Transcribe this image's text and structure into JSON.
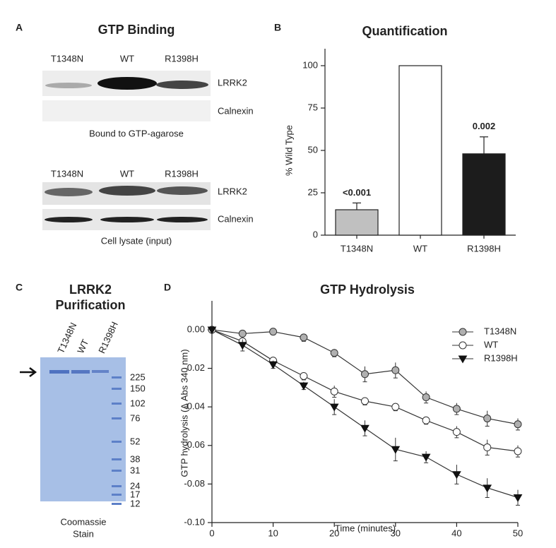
{
  "panel_a": {
    "label": "A",
    "title": "GTP Binding",
    "blots": [
      {
        "lanes": [
          "T1348N",
          "WT",
          "R1398H"
        ],
        "rows": [
          "LRRK2",
          "Calnexin"
        ],
        "caption": "Bound to GTP-agarose"
      },
      {
        "lanes": [
          "T1348N",
          "WT",
          "R1398H"
        ],
        "rows": [
          "LRRK2",
          "Calnexin"
        ],
        "caption": "Cell lysate (input)"
      }
    ]
  },
  "panel_c": {
    "label": "C",
    "title": [
      "LRRK2",
      "Purification"
    ],
    "lanes": [
      "T1348N",
      "WT",
      "R1398H"
    ],
    "ladder": [
      "225",
      "150",
      "102",
      "76",
      "52",
      "38",
      "31",
      "24",
      "17",
      "12"
    ],
    "caption": [
      "Coomassie",
      "Stain"
    ]
  },
  "chart_data": [
    {
      "type": "bar",
      "panel_label": "B",
      "title": "Quantification",
      "y_label": "% Wild Type",
      "categories": [
        "T1348N",
        "WT",
        "R1398H"
      ],
      "values": [
        15,
        100,
        48
      ],
      "errors": [
        4,
        null,
        10
      ],
      "bar_labels": [
        "<0.001",
        null,
        "0.002"
      ],
      "colors": [
        "#c0c0c0",
        "#ffffff",
        "#1c1c1c"
      ],
      "ylim": [
        0,
        110
      ],
      "yticks": [
        0,
        25,
        50,
        75,
        100
      ]
    },
    {
      "type": "line",
      "panel_label": "D",
      "title": "GTP Hydrolysis",
      "x_label": "Time (minutes)",
      "y_label": "GTP hydrolysis (Δ Abs 340 nm)",
      "legend": "top-right",
      "x": [
        0,
        5,
        10,
        15,
        20,
        25,
        30,
        35,
        40,
        45,
        50
      ],
      "series": [
        {
          "name": "T1348N",
          "color": "#b0b0b0",
          "marker": "circle",
          "values": [
            0,
            -0.002,
            -0.001,
            -0.004,
            -0.012,
            -0.023,
            -0.021,
            -0.035,
            -0.041,
            -0.046,
            -0.049
          ],
          "errors": [
            0,
            0.001,
            0.001,
            0.002,
            0.002,
            0.004,
            0.004,
            0.003,
            0.003,
            0.004,
            0.003
          ]
        },
        {
          "name": "WT",
          "color": "#ffffff",
          "marker": "circle",
          "values": [
            0,
            -0.006,
            -0.016,
            -0.024,
            -0.032,
            -0.037,
            -0.04,
            -0.047,
            -0.053,
            -0.061,
            -0.063
          ],
          "errors": [
            0,
            0.001,
            0.002,
            0.002,
            0.003,
            0.002,
            0.002,
            0.002,
            0.003,
            0.004,
            0.003
          ]
        },
        {
          "name": "R1398H",
          "color": "#111111",
          "marker": "triangle-down",
          "values": [
            0,
            -0.008,
            -0.018,
            -0.029,
            -0.04,
            -0.051,
            -0.062,
            -0.066,
            -0.075,
            -0.082,
            -0.087
          ],
          "errors": [
            0,
            0.003,
            0.002,
            0.002,
            0.004,
            0.004,
            0.006,
            0.003,
            0.005,
            0.005,
            0.004
          ]
        }
      ],
      "xlim": [
        0,
        50
      ],
      "xticks": [
        0,
        10,
        20,
        30,
        40,
        50
      ],
      "ylim": [
        -0.1,
        0.015
      ],
      "yticks": [
        {
          "value": 0,
          "label": "0.00"
        },
        {
          "value": -0.02,
          "label": "-0.02"
        },
        {
          "value": -0.04,
          "label": "-0.04"
        },
        {
          "value": -0.06,
          "label": "-0.06"
        },
        {
          "value": -0.08,
          "label": "-0.08"
        },
        {
          "value": -0.1,
          "label": "-0.10"
        }
      ]
    }
  ]
}
